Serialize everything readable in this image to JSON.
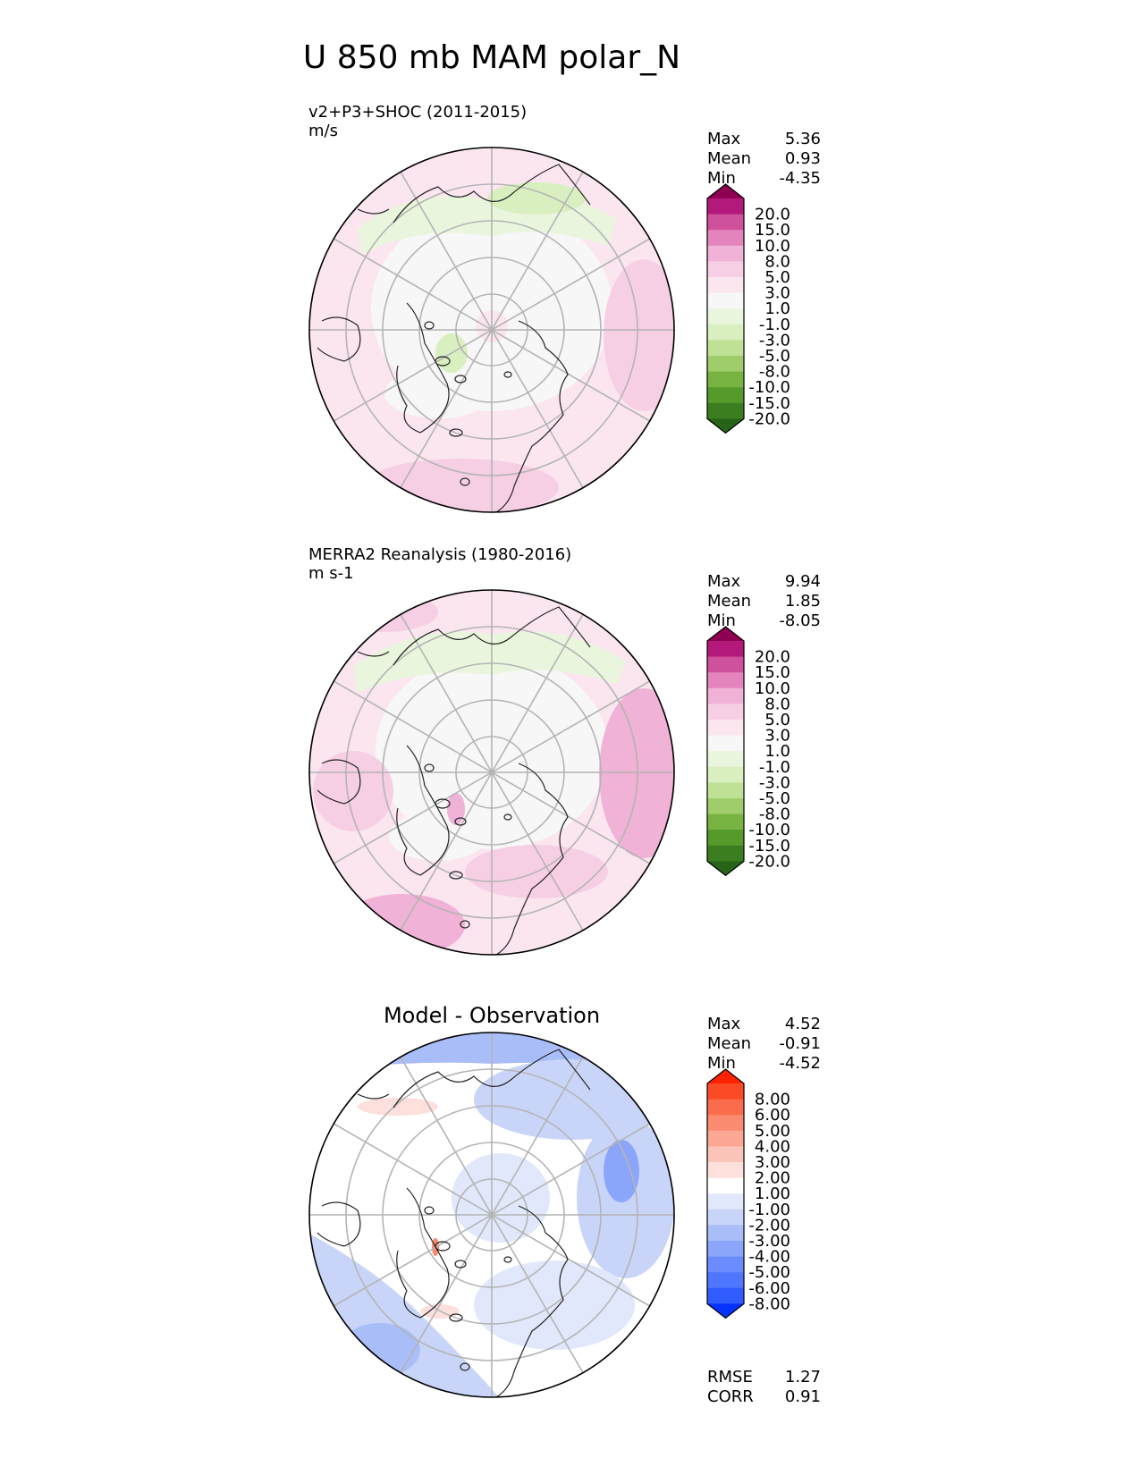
{
  "figure": {
    "title": "U 850 mb MAM polar_N"
  },
  "colors": {
    "main_levels": [
      -20,
      -15,
      -10,
      -8,
      -5,
      -3,
      -1,
      1,
      3,
      5,
      8,
      10,
      15,
      20
    ],
    "main_colors": [
      "#276419",
      "#3b7e1f",
      "#559a2b",
      "#78b342",
      "#9fcd6c",
      "#bfe196",
      "#d9efbf",
      "#eaf5dd",
      "#f7f7f7",
      "#fbe6f0",
      "#f7cfe4",
      "#f0b2d6",
      "#e385bc",
      "#cf519b",
      "#b3197a",
      "#8e0152"
    ],
    "diff_levels": [
      -8,
      -6,
      -5,
      -4,
      -3,
      -2,
      -1,
      1,
      2,
      3,
      4,
      5,
      6,
      8
    ],
    "diff_colors": [
      "#0432ff",
      "#2f5bff",
      "#4f76ff",
      "#6b8cff",
      "#8aa5fa",
      "#a9bdf8",
      "#c9d5f8",
      "#e2e8fb",
      "#ffffff",
      "#fde0dc",
      "#fbc4b8",
      "#fba794",
      "#fb8b70",
      "#fb6c4c",
      "#fb4a26",
      "#ff2200"
    ]
  },
  "panels": [
    {
      "label": "v2+P3+SHOC (2011-2015)",
      "units": "m/s",
      "stats": {
        "max_label": "Max",
        "max": "5.36",
        "mean_label": "Mean",
        "mean": "0.93",
        "min_label": "Min",
        "min": "-4.35"
      },
      "colorbar_ticks": [
        "20.0",
        "15.0",
        "10.0",
        "8.0",
        "5.0",
        "3.0",
        "1.0",
        "-1.0",
        "-3.0",
        "-5.0",
        "-8.0",
        "-10.0",
        "-15.0",
        "-20.0"
      ]
    },
    {
      "label": "MERRA2 Reanalysis (1980-2016)",
      "units": "m s-1",
      "stats": {
        "max_label": "Max",
        "max": "9.94",
        "mean_label": "Mean",
        "mean": "1.85",
        "min_label": "Min",
        "min": "-8.05"
      },
      "colorbar_ticks": [
        "20.0",
        "15.0",
        "10.0",
        "8.0",
        "5.0",
        "3.0",
        "1.0",
        "-1.0",
        "-3.0",
        "-5.0",
        "-8.0",
        "-10.0",
        "-15.0",
        "-20.0"
      ]
    },
    {
      "title": "Model - Observation",
      "stats": {
        "max_label": "Max",
        "max": "4.52",
        "mean_label": "Mean",
        "mean": "-0.91",
        "min_label": "Min",
        "min": "-4.52"
      },
      "colorbar_ticks": [
        "8.00",
        "6.00",
        "5.00",
        "4.00",
        "3.00",
        "2.00",
        "1.00",
        "-1.00",
        "-2.00",
        "-3.00",
        "-4.00",
        "-5.00",
        "-6.00",
        "-8.00"
      ],
      "rmse_label": "RMSE",
      "rmse": "1.27",
      "corr_label": "CORR",
      "corr": "0.91"
    }
  ],
  "chart_data": [
    {
      "type": "heatmap",
      "projection": "north-polar-stereographic",
      "title": "v2+P3+SHOC (2011-2015)",
      "units": "m/s",
      "levels": [
        -20,
        -15,
        -10,
        -8,
        -5,
        -3,
        -1,
        1,
        3,
        5,
        8,
        10,
        15,
        20
      ],
      "stats": {
        "max": 5.36,
        "mean": 0.93,
        "min": -4.35
      },
      "latitude_circles_deg": [
        50,
        60,
        70,
        80
      ]
    },
    {
      "type": "heatmap",
      "projection": "north-polar-stereographic",
      "title": "MERRA2 Reanalysis (1980-2016)",
      "units": "m s-1",
      "levels": [
        -20,
        -15,
        -10,
        -8,
        -5,
        -3,
        -1,
        1,
        3,
        5,
        8,
        10,
        15,
        20
      ],
      "stats": {
        "max": 9.94,
        "mean": 1.85,
        "min": -8.05
      },
      "latitude_circles_deg": [
        50,
        60,
        70,
        80
      ]
    },
    {
      "type": "heatmap",
      "projection": "north-polar-stereographic",
      "title": "Model - Observation",
      "levels": [
        -8,
        -6,
        -5,
        -4,
        -3,
        -2,
        -1,
        1,
        2,
        3,
        4,
        5,
        6,
        8
      ],
      "stats": {
        "max": 4.52,
        "mean": -0.91,
        "min": -4.52,
        "rmse": 1.27,
        "corr": 0.91
      },
      "latitude_circles_deg": [
        50,
        60,
        70,
        80
      ]
    }
  ]
}
